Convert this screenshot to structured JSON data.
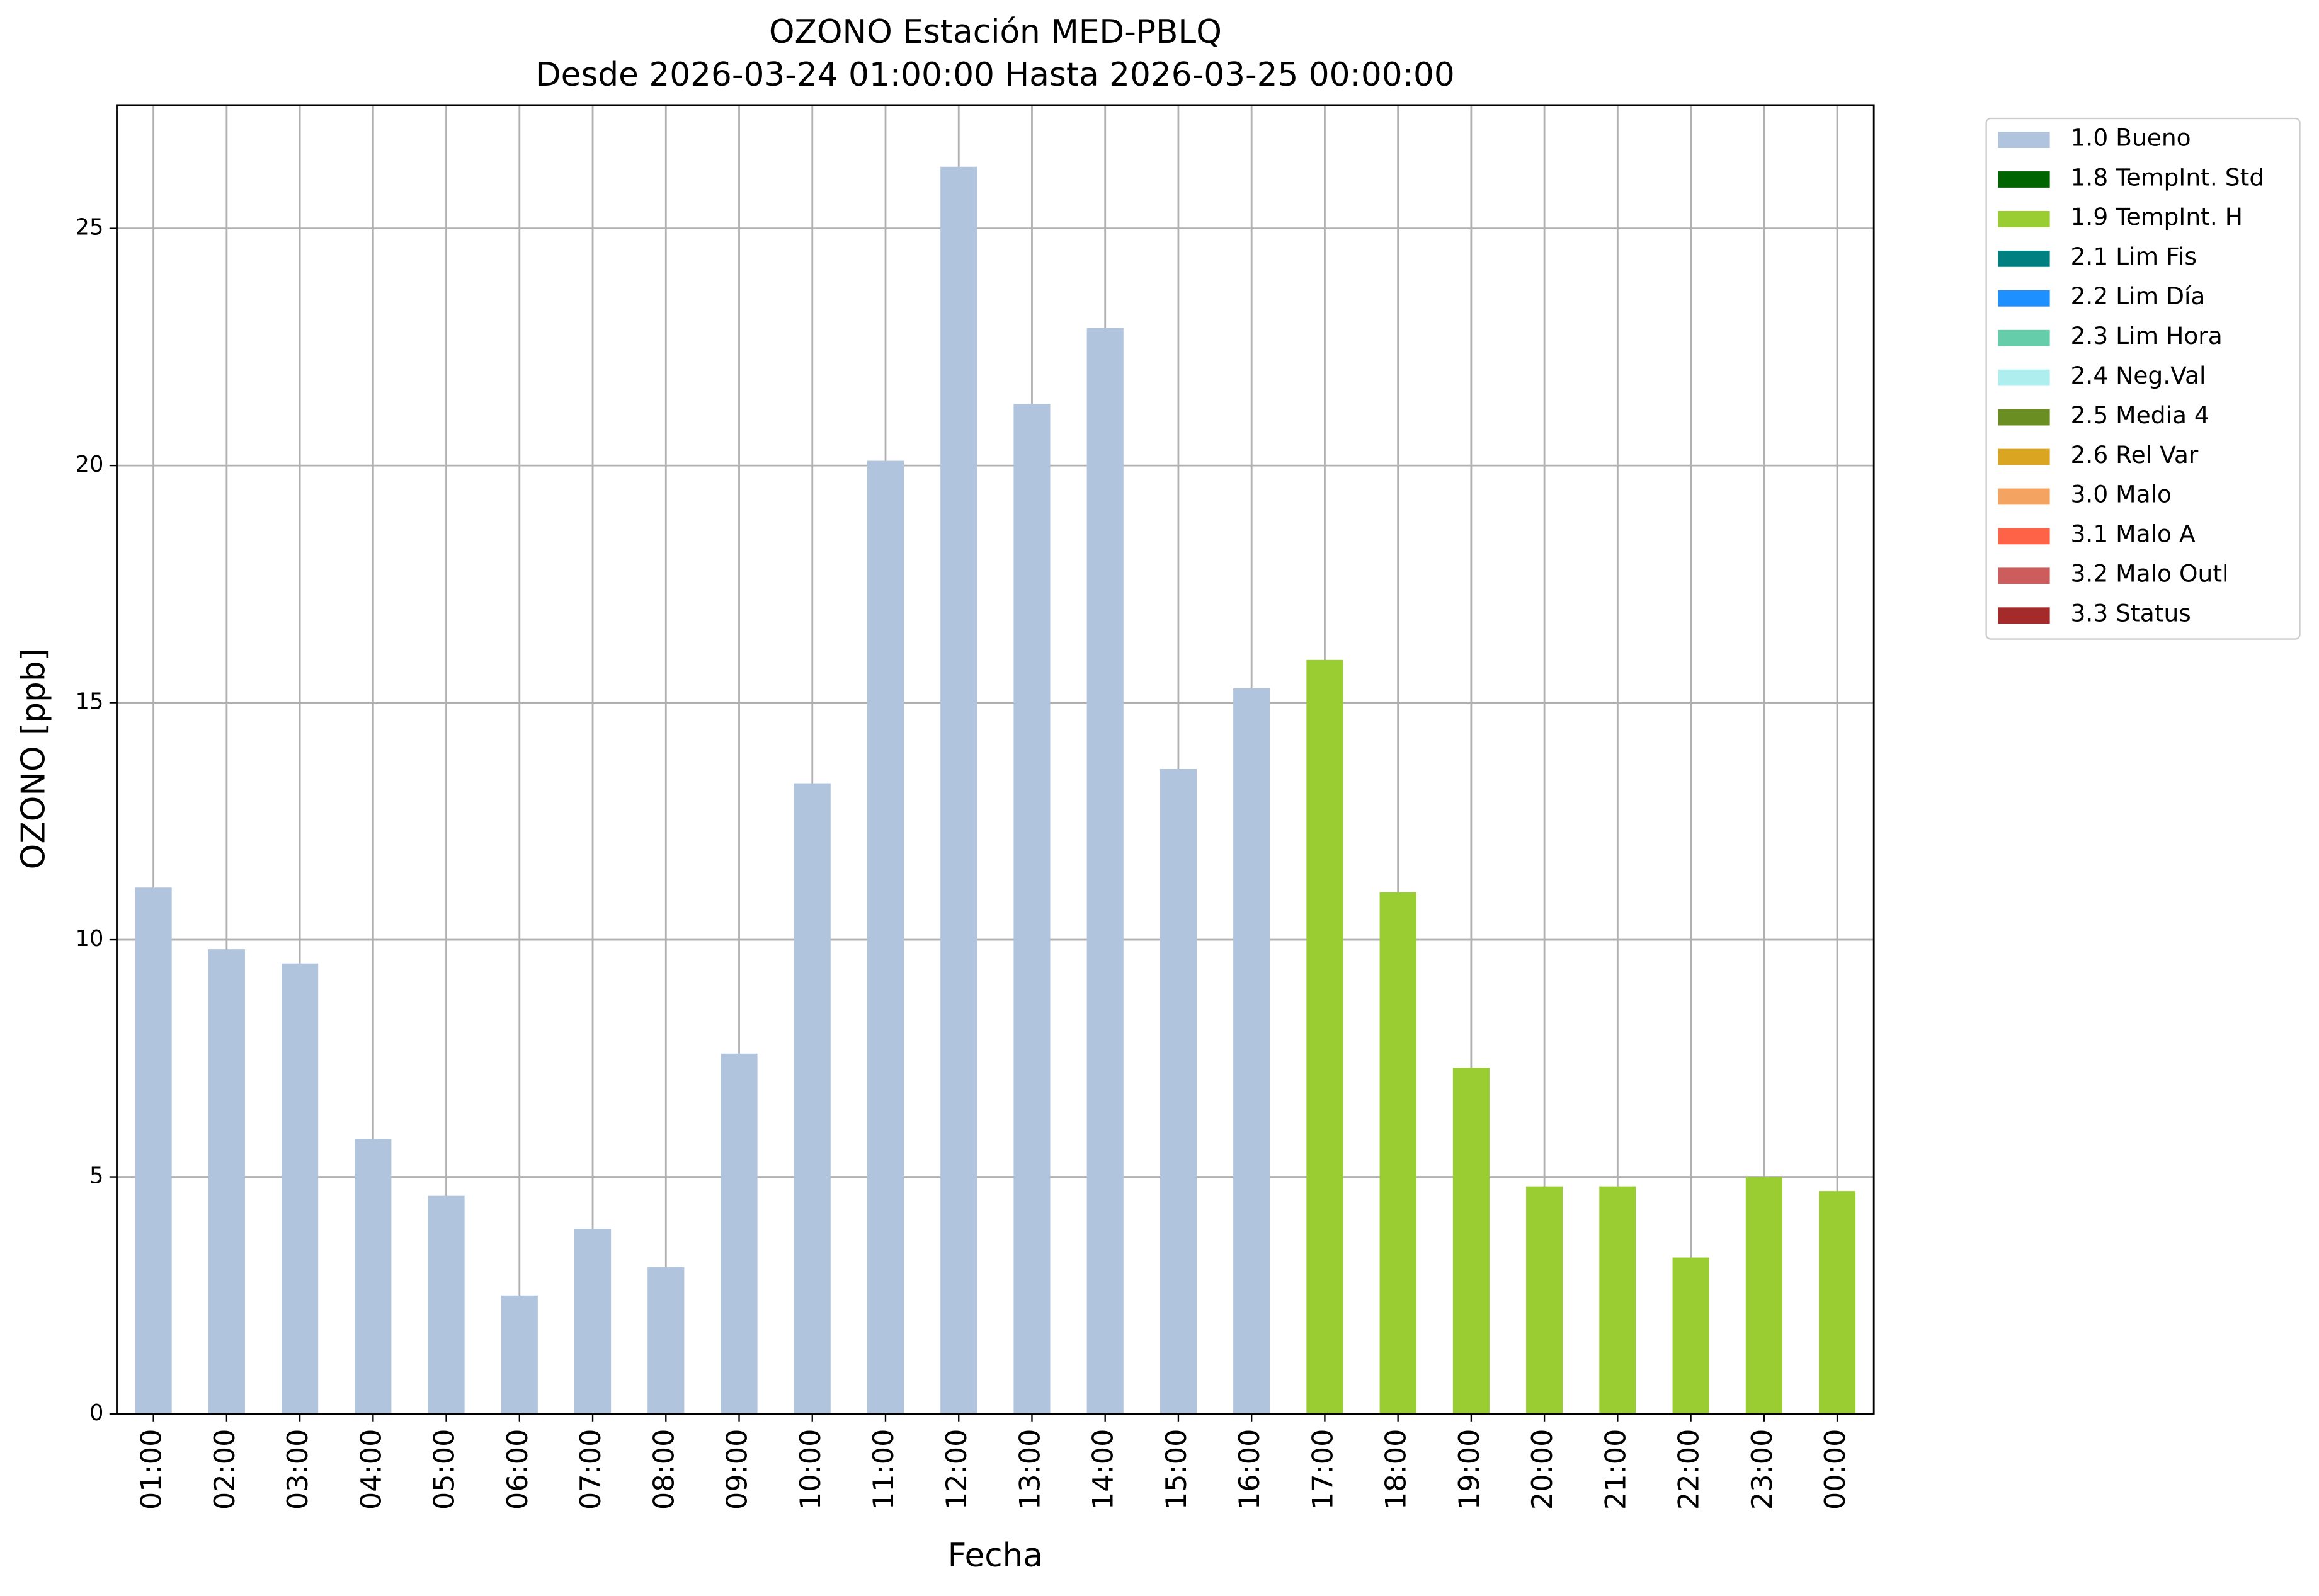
{
  "chart_data": {
    "type": "stacked_bar",
    "title": "OZONO Estación MED-PBLQ",
    "subtitle": "Desde 2026-03-24 01:00:00 Hasta 2026-03-25 00:00:00",
    "x_label": "Fecha",
    "y_label": "OZONO [ppb]",
    "categories": [
      "01:00",
      "02:00",
      "03:00",
      "04:00",
      "05:00",
      "06:00",
      "07:00",
      "08:00",
      "09:00",
      "10:00",
      "11:00",
      "12:00",
      "13:00",
      "14:00",
      "15:00",
      "16:00",
      "17:00",
      "18:00",
      "19:00",
      "20:00",
      "21:00",
      "22:00",
      "23:00",
      "00:00"
    ],
    "series": [
      {
        "name": "1.0 Bueno",
        "color": "#b0c4de",
        "values": [
          11.1,
          9.8,
          9.5,
          5.8,
          4.6,
          2.5,
          3.9,
          3.1,
          7.6,
          13.3,
          20.1,
          26.3,
          21.3,
          22.9,
          13.6,
          15.3,
          null,
          null,
          null,
          null,
          null,
          null,
          null,
          null
        ]
      },
      {
        "name": "1.8 TempInt. Std",
        "color": "#006400",
        "values": [
          null,
          null,
          null,
          null,
          null,
          null,
          null,
          null,
          null,
          null,
          null,
          null,
          null,
          null,
          null,
          null,
          null,
          null,
          null,
          null,
          null,
          null,
          null,
          null
        ]
      },
      {
        "name": "1.9 TempInt. H",
        "color": "#9acd32",
        "values": [
          null,
          null,
          null,
          null,
          null,
          null,
          null,
          null,
          null,
          null,
          null,
          null,
          null,
          null,
          null,
          null,
          15.9,
          11.0,
          7.3,
          4.8,
          4.8,
          3.3,
          5.0,
          4.7
        ]
      },
      {
        "name": "2.1 Lim Fis",
        "color": "#008080",
        "values": [
          null,
          null,
          null,
          null,
          null,
          null,
          null,
          null,
          null,
          null,
          null,
          null,
          null,
          null,
          null,
          null,
          null,
          null,
          null,
          null,
          null,
          null,
          null,
          null
        ]
      },
      {
        "name": "2.2 Lim Día",
        "color": "#1e90ff",
        "values": [
          null,
          null,
          null,
          null,
          null,
          null,
          null,
          null,
          null,
          null,
          null,
          null,
          null,
          null,
          null,
          null,
          null,
          null,
          null,
          null,
          null,
          null,
          null,
          null
        ]
      },
      {
        "name": "2.3 Lim Hora",
        "color": "#66cdaa",
        "values": [
          null,
          null,
          null,
          null,
          null,
          null,
          null,
          null,
          null,
          null,
          null,
          null,
          null,
          null,
          null,
          null,
          null,
          null,
          null,
          null,
          null,
          null,
          null,
          null
        ]
      },
      {
        "name": "2.4 Neg.Val",
        "color": "#afeeee",
        "values": [
          null,
          null,
          null,
          null,
          null,
          null,
          null,
          null,
          null,
          null,
          null,
          null,
          null,
          null,
          null,
          null,
          null,
          null,
          null,
          null,
          null,
          null,
          null,
          null
        ]
      },
      {
        "name": "2.5 Media 4",
        "color": "#6b8e23",
        "values": [
          null,
          null,
          null,
          null,
          null,
          null,
          null,
          null,
          null,
          null,
          null,
          null,
          null,
          null,
          null,
          null,
          null,
          null,
          null,
          null,
          null,
          null,
          null,
          null
        ]
      },
      {
        "name": "2.6 Rel Var",
        "color": "#daa520",
        "values": [
          null,
          null,
          null,
          null,
          null,
          null,
          null,
          null,
          null,
          null,
          null,
          null,
          null,
          null,
          null,
          null,
          null,
          null,
          null,
          null,
          null,
          null,
          null,
          null
        ]
      },
      {
        "name": "3.0 Malo",
        "color": "#f4a460",
        "values": [
          null,
          null,
          null,
          null,
          null,
          null,
          null,
          null,
          null,
          null,
          null,
          null,
          null,
          null,
          null,
          null,
          null,
          null,
          null,
          null,
          null,
          null,
          null,
          null
        ]
      },
      {
        "name": "3.1 Malo A",
        "color": "#ff6347",
        "values": [
          null,
          null,
          null,
          null,
          null,
          null,
          null,
          null,
          null,
          null,
          null,
          null,
          null,
          null,
          null,
          null,
          null,
          null,
          null,
          null,
          null,
          null,
          null,
          null
        ]
      },
      {
        "name": "3.2 Malo Outl",
        "color": "#cd5c5c",
        "values": [
          null,
          null,
          null,
          null,
          null,
          null,
          null,
          null,
          null,
          null,
          null,
          null,
          null,
          null,
          null,
          null,
          null,
          null,
          null,
          null,
          null,
          null,
          null,
          null
        ]
      },
      {
        "name": "3.3 Status",
        "color": "#a52a2a",
        "values": [
          null,
          null,
          null,
          null,
          null,
          null,
          null,
          null,
          null,
          null,
          null,
          null,
          null,
          null,
          null,
          null,
          null,
          null,
          null,
          null,
          null,
          null,
          null,
          null
        ]
      }
    ],
    "ylim": [
      0,
      27.6
    ],
    "yticks": [
      0,
      5,
      10,
      15,
      20,
      25
    ],
    "grid": true
  }
}
